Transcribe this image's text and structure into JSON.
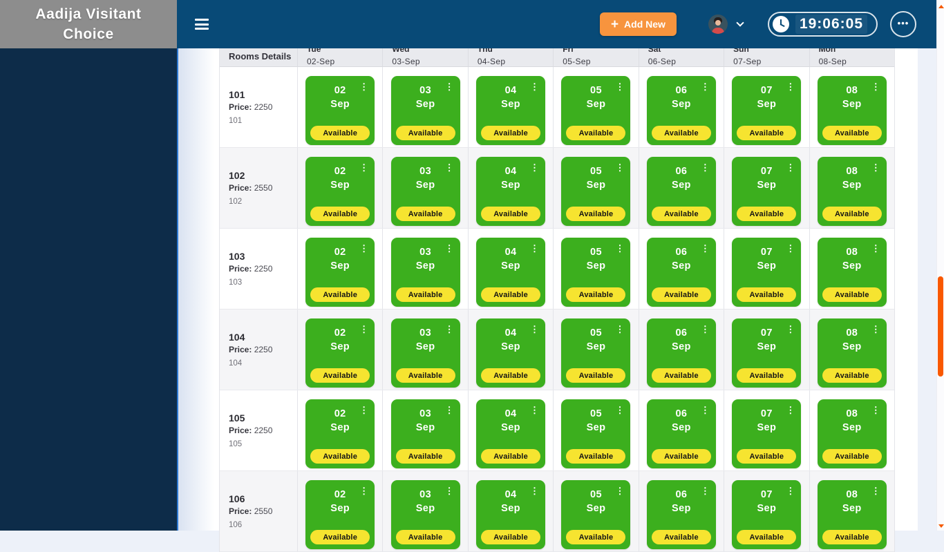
{
  "sidebar": {
    "title": "Aadija Visitant Choice"
  },
  "topbar": {
    "add_new_label": "Add New",
    "time": "19:06:05"
  },
  "icons": {
    "plus": "+",
    "kebab": "⋮",
    "ellipsis": "•••"
  },
  "table": {
    "rooms_header": "Rooms Details",
    "price_label": "Price:",
    "status_label": "Available",
    "columns": [
      {
        "day": "Tue",
        "date": "02-Sep",
        "card_day": "02",
        "card_month": "Sep"
      },
      {
        "day": "Wed",
        "date": "03-Sep",
        "card_day": "03",
        "card_month": "Sep"
      },
      {
        "day": "Thu",
        "date": "04-Sep",
        "card_day": "04",
        "card_month": "Sep"
      },
      {
        "day": "Fri",
        "date": "05-Sep",
        "card_day": "05",
        "card_month": "Sep"
      },
      {
        "day": "Sat",
        "date": "06-Sep",
        "card_day": "06",
        "card_month": "Sep"
      },
      {
        "day": "Sun",
        "date": "07-Sep",
        "card_day": "07",
        "card_month": "Sep"
      },
      {
        "day": "Mon",
        "date": "08-Sep",
        "card_day": "08",
        "card_month": "Sep"
      }
    ],
    "rooms": [
      {
        "name": "101",
        "price": "2250",
        "code": "101"
      },
      {
        "name": "102",
        "price": "2550",
        "code": "102"
      },
      {
        "name": "103",
        "price": "2250",
        "code": "103"
      },
      {
        "name": "104",
        "price": "2250",
        "code": "104"
      },
      {
        "name": "105",
        "price": "2250",
        "code": "105"
      },
      {
        "name": "106",
        "price": "2550",
        "code": "106"
      }
    ]
  },
  "colors": {
    "topbar_navy": "#084a77",
    "sidebar_navy": "#0d2c49",
    "sidebar_header_gray": "#8d8d8d",
    "card_green": "#3caf1e",
    "badge_yellow": "#f6e430",
    "button_orange": "#f7943e",
    "scrollbar_orange": "#f95800"
  }
}
